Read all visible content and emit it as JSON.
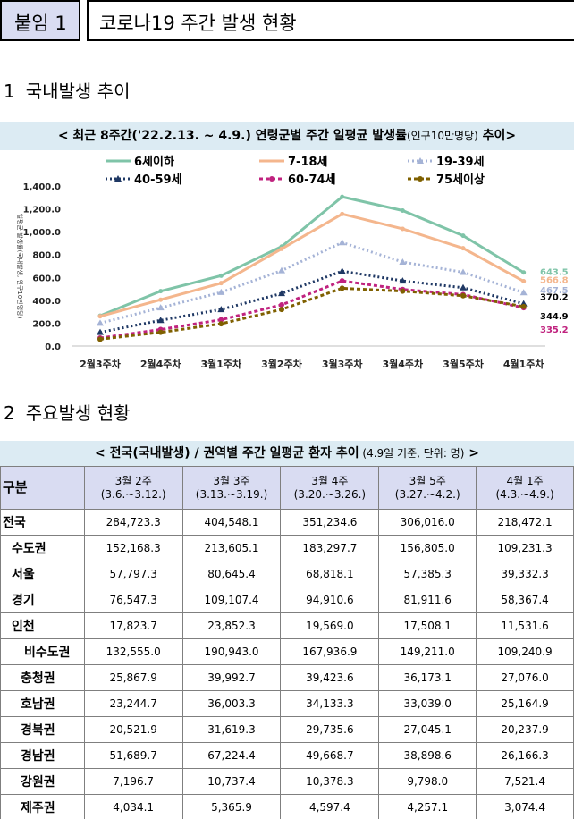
{
  "header": {
    "tag": "붙임 1",
    "title": "코로나19 주간 발생 현황"
  },
  "section1": {
    "num": "1",
    "title": "국내발생 추이"
  },
  "chart_banner": {
    "main": "< 최근 8주간('22.2.13. ~ 4.9.) 연령군별 주간 일평균 발생률",
    "unit": "(인구10만명당)",
    "tail": " 추이>"
  },
  "chart_data": {
    "type": "line",
    "ylabel": "일평균 발생률(국내발생, 인구10만명당)",
    "ylim": [
      0,
      1400
    ],
    "yticks": [
      "0.0",
      "200.0",
      "400.0",
      "600.0",
      "800.0",
      "1,000.0",
      "1,200.0",
      "1,400.0"
    ],
    "ytick_values": [
      0,
      200,
      400,
      600,
      800,
      1000,
      1200,
      1400
    ],
    "categories": [
      "2월3주차",
      "2월4주차",
      "3월1주차",
      "3월2주차",
      "3월3주차",
      "3월4주차",
      "3월5주차",
      "4월1주차"
    ],
    "series": [
      {
        "name": "6세이하",
        "color": "#7fc4a8",
        "style": "solid",
        "marker": "none",
        "values": [
          265,
          480,
          615,
          870,
          1305,
          1185,
          965,
          643.5
        ],
        "last_label": "643.5"
      },
      {
        "name": "7-18세",
        "color": "#f4b68d",
        "style": "solid",
        "marker": "none",
        "values": [
          260,
          405,
          550,
          850,
          1155,
          1025,
          855,
          566.8
        ],
        "last_label": "566.8"
      },
      {
        "name": "19-39세",
        "color": "#a5b3d6",
        "style": "dotted",
        "marker": "triangle",
        "values": [
          200,
          335,
          470,
          660,
          905,
          735,
          645,
          467.5
        ],
        "last_label": "467.5"
      },
      {
        "name": "40-59세",
        "color": "#1f3864",
        "style": "dotted",
        "marker": "triangle",
        "values": [
          120,
          225,
          320,
          460,
          655,
          570,
          510,
          370.2
        ],
        "last_label": "370.2"
      },
      {
        "name": "60-74세",
        "color": "#c0237f",
        "style": "dashed",
        "marker": "circle",
        "values": [
          70,
          145,
          230,
          360,
          570,
          495,
          450,
          335.2
        ],
        "last_label": "335.2"
      },
      {
        "name": "75세이상",
        "color": "#7f6000",
        "style": "dashed",
        "marker": "circle",
        "values": [
          60,
          120,
          195,
          320,
          505,
          480,
          440,
          344.9
        ],
        "last_label": "344.9"
      }
    ]
  },
  "section2": {
    "num": "2",
    "title": "주요발생 현황"
  },
  "table_banner": {
    "main": "< 전국(국내발생) / 권역별 주간 일평균 환자 추이",
    "note": " (4.9일 기준, 단위: 명)",
    "tail": " >"
  },
  "table": {
    "row_header": "구분",
    "columns": [
      {
        "week": "3월 2주",
        "range": "(3.6.~3.12.)"
      },
      {
        "week": "3월 3주",
        "range": "(3.13.~3.19.)"
      },
      {
        "week": "3월 4주",
        "range": "(3.20.~3.26.)"
      },
      {
        "week": "3월 5주",
        "range": "(3.27.~4.2.)"
      },
      {
        "week": "4월 1주",
        "range": "(4.3.~4.9.)"
      }
    ],
    "rows": [
      {
        "label": "전국",
        "level": "l0",
        "values": [
          "284,723.3",
          "404,548.1",
          "351,234.6",
          "306,016.0",
          "218,472.1"
        ]
      },
      {
        "label": "수도권",
        "level": "l1",
        "values": [
          "152,168.3",
          "213,605.1",
          "183,297.7",
          "156,805.0",
          "109,231.3"
        ]
      },
      {
        "label": "서울",
        "level": "l2",
        "values": [
          "57,797.3",
          "80,645.4",
          "68,818.1",
          "57,385.3",
          "39,332.3"
        ]
      },
      {
        "label": "경기",
        "level": "l2",
        "values": [
          "76,547.3",
          "109,107.4",
          "94,910.6",
          "81,911.6",
          "58,367.4"
        ]
      },
      {
        "label": "인천",
        "level": "l2",
        "values": [
          "17,823.7",
          "23,852.3",
          "19,569.0",
          "17,508.1",
          "11,531.6"
        ]
      },
      {
        "label": "비수도권",
        "level": "bis",
        "values": [
          "132,555.0",
          "190,943.0",
          "167,936.9",
          "149,211.0",
          "109,240.9"
        ]
      },
      {
        "label": "충청권",
        "level": "reg",
        "values": [
          "25,867.9",
          "39,992.7",
          "39,423.6",
          "36,173.1",
          "27,076.0"
        ]
      },
      {
        "label": "호남권",
        "level": "reg",
        "values": [
          "23,244.7",
          "36,003.3",
          "34,133.3",
          "33,039.0",
          "25,164.9"
        ]
      },
      {
        "label": "경북권",
        "level": "reg",
        "values": [
          "20,521.9",
          "31,619.3",
          "29,735.6",
          "27,045.1",
          "20,237.9"
        ]
      },
      {
        "label": "경남권",
        "level": "reg",
        "values": [
          "51,689.7",
          "67,224.4",
          "49,668.7",
          "38,898.6",
          "26,166.3"
        ]
      },
      {
        "label": "강원권",
        "level": "reg",
        "values": [
          "7,196.7",
          "10,737.4",
          "10,378.3",
          "9,798.0",
          "7,521.4"
        ]
      },
      {
        "label": "제주권",
        "level": "reg",
        "values": [
          "4,034.1",
          "5,365.9",
          "4,597.4",
          "4,257.1",
          "3,074.4"
        ]
      }
    ]
  }
}
